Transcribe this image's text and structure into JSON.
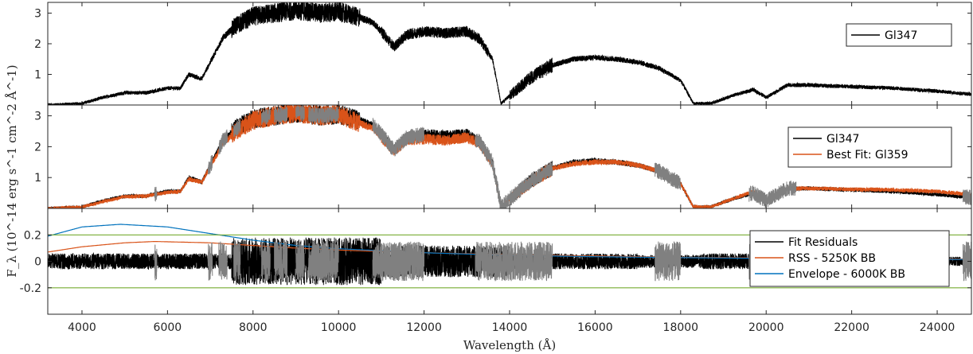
{
  "chart_data": {
    "type": "line",
    "xlabel": "Wavelength (Å)",
    "ylabel": "F_λ (10^-14 erg s^-1 cm^-2 Å^-1)",
    "x_range": [
      3200,
      24800
    ],
    "x_ticks": [
      4000,
      6000,
      8000,
      10000,
      12000,
      14000,
      16000,
      18000,
      20000,
      22000,
      24000
    ],
    "x_tick_labels": [
      "4000",
      "6000",
      "8000",
      "10000",
      "12000",
      "14000",
      "16000",
      "18000",
      "20000",
      "22000",
      "24000"
    ],
    "panels": [
      {
        "ylim": [
          0,
          3.35
        ],
        "y_ticks": [
          1,
          2,
          3
        ],
        "y_tick_labels": [
          "1",
          "2",
          "3"
        ],
        "legend_position": "top-right",
        "series": [
          {
            "name": "Gl347",
            "color": "#000000",
            "x": [
              3200,
              4000,
              4500,
              5000,
              5500,
              6000,
              6300,
              6500,
              6800,
              7000,
              7300,
              7600,
              8000,
              8500,
              9000,
              9300,
              9600,
              10000,
              10500,
              10800,
              11000,
              11300,
              11600,
              12000,
              12500,
              13000,
              13300,
              13600,
              13800,
              14000,
              14500,
              15000,
              15500,
              16000,
              16500,
              17000,
              17500,
              18000,
              18300,
              18700,
              19200,
              19700,
              20000,
              20500,
              21000,
              22000,
              23000,
              24000,
              24800
            ],
            "y": [
              0.0,
              0.05,
              0.25,
              0.4,
              0.4,
              0.55,
              0.55,
              1.0,
              0.85,
              1.4,
              2.2,
              2.6,
              2.9,
              3.0,
              3.1,
              3.05,
              3.0,
              3.05,
              2.85,
              2.7,
              2.4,
              1.9,
              2.3,
              2.4,
              2.35,
              2.4,
              2.15,
              1.5,
              0.05,
              0.3,
              0.9,
              1.3,
              1.5,
              1.55,
              1.5,
              1.4,
              1.2,
              0.8,
              0.05,
              0.05,
              0.3,
              0.5,
              0.25,
              0.65,
              0.65,
              0.6,
              0.55,
              0.45,
              0.35
            ]
          }
        ]
      },
      {
        "ylim": [
          0,
          3.35
        ],
        "y_ticks": [
          1,
          2,
          3
        ],
        "y_tick_labels": [
          "1",
          "2",
          "3"
        ],
        "legend_position": "right",
        "series": [
          {
            "name": "Gl347",
            "color": "#000000",
            "x": [
              3200,
              4000,
              4500,
              5000,
              5500,
              6000,
              6300,
              6500,
              6800,
              7000,
              7300,
              7600,
              8000,
              8500,
              9000,
              9300,
              9600,
              10000,
              10500,
              10800,
              11000,
              11300,
              11600,
              12000,
              12500,
              13000,
              13300,
              13600,
              13800,
              14000,
              14500,
              15000,
              15500,
              16000,
              16500,
              17000,
              17500,
              18000,
              18300,
              18700,
              19200,
              19700,
              20000,
              20500,
              21000,
              22000,
              23000,
              24000,
              24800
            ],
            "y": [
              0.0,
              0.05,
              0.25,
              0.4,
              0.4,
              0.55,
              0.55,
              1.0,
              0.85,
              1.4,
              2.2,
              2.6,
              2.9,
              3.0,
              3.1,
              3.05,
              3.0,
              3.05,
              2.85,
              2.7,
              2.4,
              1.9,
              2.3,
              2.4,
              2.35,
              2.4,
              2.15,
              1.5,
              0.05,
              0.3,
              0.9,
              1.3,
              1.5,
              1.55,
              1.5,
              1.4,
              1.2,
              0.8,
              0.05,
              0.05,
              0.3,
              0.5,
              0.25,
              0.65,
              0.65,
              0.6,
              0.55,
              0.45,
              0.35
            ]
          },
          {
            "name": "Best Fit: Gl359",
            "color": "#d95319",
            "x": [
              3200,
              4000,
              4500,
              5000,
              5500,
              6000,
              6300,
              6500,
              6800,
              7000,
              7300,
              7600,
              8000,
              8500,
              9000,
              9300,
              9600,
              10000,
              10500,
              10800,
              11000,
              11300,
              11600,
              12000,
              12500,
              13000,
              13300,
              13600,
              13800,
              14000,
              14500,
              15000,
              15500,
              16000,
              16500,
              17000,
              17500,
              18000,
              18300,
              18700,
              19200,
              19700,
              20000,
              20500,
              21000,
              22000,
              23000,
              24000,
              24800
            ],
            "y": [
              0.0,
              0.05,
              0.22,
              0.38,
              0.4,
              0.52,
              0.55,
              0.95,
              0.85,
              1.35,
              2.1,
              2.5,
              2.85,
              3.0,
              3.1,
              3.05,
              3.0,
              3.05,
              2.75,
              2.6,
              2.3,
              1.85,
              2.2,
              2.25,
              2.2,
              2.3,
              2.1,
              1.4,
              0.05,
              0.3,
              0.85,
              1.3,
              1.45,
              1.5,
              1.5,
              1.4,
              1.2,
              0.8,
              0.05,
              0.05,
              0.3,
              0.55,
              0.25,
              0.65,
              0.65,
              0.62,
              0.6,
              0.55,
              0.45
            ]
          }
        ]
      },
      {
        "ylim": [
          -0.4,
          0.4
        ],
        "y_ticks": [
          -0.2,
          0,
          0.2
        ],
        "y_tick_labels": [
          "-0.2",
          "0",
          "0.2"
        ],
        "legend_position": "right",
        "series": [
          {
            "name": "Fit Residuals",
            "color": "#000000",
            "x": [
              3200,
              4000,
              5000,
              6000,
              7000,
              8000,
              9000,
              10000,
              11000,
              12000,
              13000,
              14000,
              15000,
              16000,
              17000,
              18000,
              19000,
              20000,
              21000,
              22000,
              23000,
              24000,
              24800
            ],
            "y": [
              0,
              0,
              0,
              0,
              0,
              0,
              0,
              0,
              0,
              0,
              0,
              0,
              0,
              0,
              0,
              0,
              0,
              0,
              0,
              0,
              0,
              0,
              0
            ]
          },
          {
            "name": "RSS - 5250K BB",
            "color": "#d95319",
            "x": [
              3200,
              4000,
              5000,
              5700,
              7000,
              8000,
              9000,
              10000,
              12000,
              14000,
              16000,
              18000,
              20000,
              22000,
              24000,
              24800
            ],
            "y": [
              0.07,
              0.11,
              0.14,
              0.15,
              0.14,
              0.12,
              0.1,
              0.085,
              0.065,
              0.05,
              0.04,
              0.03,
              0.025,
              0.02,
              0.018,
              0.017
            ]
          },
          {
            "name": "Envelope - 6000K BB",
            "color": "#0072bd",
            "x": [
              3200,
              4000,
              4900,
              6000,
              7000,
              8000,
              9000,
              10000,
              12000,
              14000,
              16000,
              18000,
              20000,
              22000,
              24000,
              24800
            ],
            "y": [
              0.19,
              0.26,
              0.28,
              0.26,
              0.21,
              0.16,
              0.12,
              0.095,
              0.065,
              0.045,
              0.035,
              0.028,
              0.022,
              0.018,
              0.015,
              0.014
            ]
          },
          {
            "name": "",
            "color": "#77ac30",
            "x": [
              3200,
              24800
            ],
            "y": [
              0.2,
              0.2
            ]
          },
          {
            "name": "",
            "color": "#77ac30",
            "x": [
              3200,
              24800
            ],
            "y": [
              -0.2,
              -0.2
            ]
          }
        ]
      }
    ],
    "grey_masked_regions": [
      [
        5700,
        5750
      ],
      [
        6950,
        7050
      ],
      [
        7200,
        7400
      ],
      [
        7550,
        7700
      ],
      [
        8200,
        8400
      ],
      [
        8500,
        8800
      ],
      [
        9000,
        9200
      ],
      [
        9300,
        10000
      ],
      [
        10800,
        12000
      ],
      [
        13200,
        15000
      ],
      [
        17400,
        18000
      ],
      [
        19600,
        20700
      ],
      [
        24600,
        24800
      ]
    ]
  }
}
